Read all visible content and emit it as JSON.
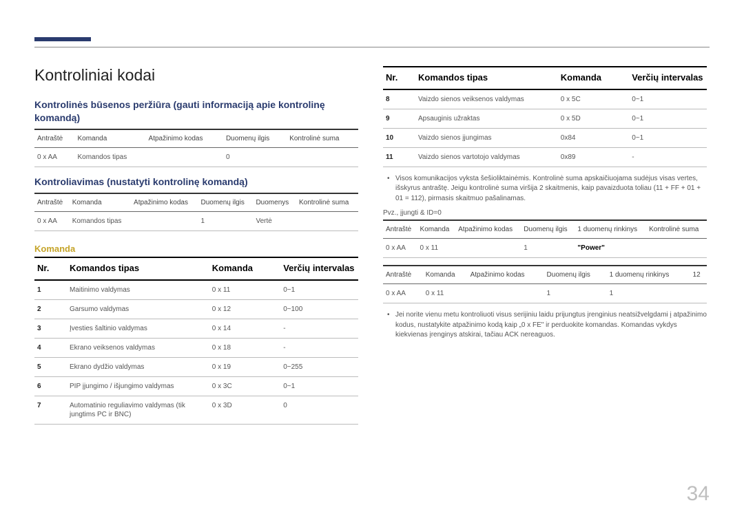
{
  "page_number": "34",
  "title": "Kontroliniai kodai",
  "section1": {
    "heading": "Kontrolinės būsenos peržiūra (gauti informaciją apie kontrolinę komandą)",
    "headers": [
      "Antraštė",
      "Komanda",
      "Atpažinimo kodas",
      "Duomenų ilgis",
      "Kontrolinė suma"
    ],
    "row": [
      "0 x AA",
      "Komandos tipas",
      "",
      "0",
      ""
    ]
  },
  "section2": {
    "heading": "Kontroliavimas (nustatyti kontrolinę komandą)",
    "headers": [
      "Antraštė",
      "Komanda",
      "Atpažinimo kodas",
      "Duomenų ilgis",
      "Duomenys",
      "Kontrolinė suma"
    ],
    "row": [
      "0 x AA",
      "Komandos tipas",
      "",
      "1",
      "Vertė",
      ""
    ]
  },
  "komanda_heading": "Komanda",
  "cmd_table": {
    "headers": [
      "Nr.",
      "Komandos tipas",
      "Komanda",
      "Verčių intervalas"
    ],
    "rows": [
      [
        "1",
        "Maitinimo valdymas",
        "0 x 11",
        "0~1"
      ],
      [
        "2",
        "Garsumo valdymas",
        "0 x 12",
        "0~100"
      ],
      [
        "3",
        "Įvesties šaltinio valdymas",
        "0 x 14",
        "-"
      ],
      [
        "4",
        "Ekrano veiksenos valdymas",
        "0 x 18",
        "-"
      ],
      [
        "5",
        "Ekrano dydžio valdymas",
        "0 x 19",
        "0~255"
      ],
      [
        "6",
        "PIP įjungimo / išjungimo valdymas",
        "0 x 3C",
        "0~1"
      ],
      [
        "7",
        "Automatinio reguliavimo valdymas (tik jungtims PC ir BNC)",
        "0 x 3D",
        "0"
      ]
    ]
  },
  "cmd_table2": {
    "headers": [
      "Nr.",
      "Komandos tipas",
      "Komanda",
      "Verčių intervalas"
    ],
    "rows": [
      [
        "8",
        "Vaizdo sienos veiksenos valdymas",
        "0 x 5C",
        "0~1"
      ],
      [
        "9",
        "Apsauginis užraktas",
        "0 x 5D",
        "0~1"
      ],
      [
        "10",
        "Vaizdo sienos įjungimas",
        "0x84",
        "0~1"
      ],
      [
        "11",
        "Vaizdo sienos vartotojo valdymas",
        "0x89",
        "-"
      ]
    ]
  },
  "note1": "Visos komunikacijos vyksta šešioliktainėmis. Kontrolinė suma apskaičiuojama sudėjus visas vertes, išskyrus antraštę. Jeigu kontrolinė suma viršija 2 skaitmenis, kaip pavaizduota toliau (11 + FF + 01 + 01 = 112), pirmasis skaitmuo pašalinamas.",
  "example_label": "Pvz., įjungti & ID=0",
  "ex_table1": {
    "headers": [
      "Antraštė",
      "Komanda",
      "Atpažinimo kodas",
      "Duomenų ilgis",
      "1 duomenų rinkinys",
      "Kontrolinė suma"
    ],
    "row": [
      "0 x AA",
      "0 x 11",
      "",
      "1",
      "\"Power\"",
      ""
    ]
  },
  "ex_table2": {
    "headers": [
      "Antraštė",
      "Komanda",
      "Atpažinimo kodas",
      "Duomenų ilgis",
      "1 duomenų rinkinys",
      "12"
    ],
    "row": [
      "0 x AA",
      "0 x 11",
      "",
      "1",
      "1",
      ""
    ]
  },
  "note2": "Jei norite vienu metu kontroliuoti visus serijiniu laidu prijungtus įrenginius neatsižvelgdami į atpažinimo kodus, nustatykite atpažinimo kodą kaip „0 x FE\" ir perduokite komandas. Komandas vykdys kiekvienas įrenginys atskirai, tačiau ACK nereaguos.",
  "colors": {
    "heading": "#2a3b6e",
    "subheading": "#c5a429",
    "text": "#333333",
    "border": "#bbbbbb",
    "pagenum": "#bfbfbf"
  }
}
